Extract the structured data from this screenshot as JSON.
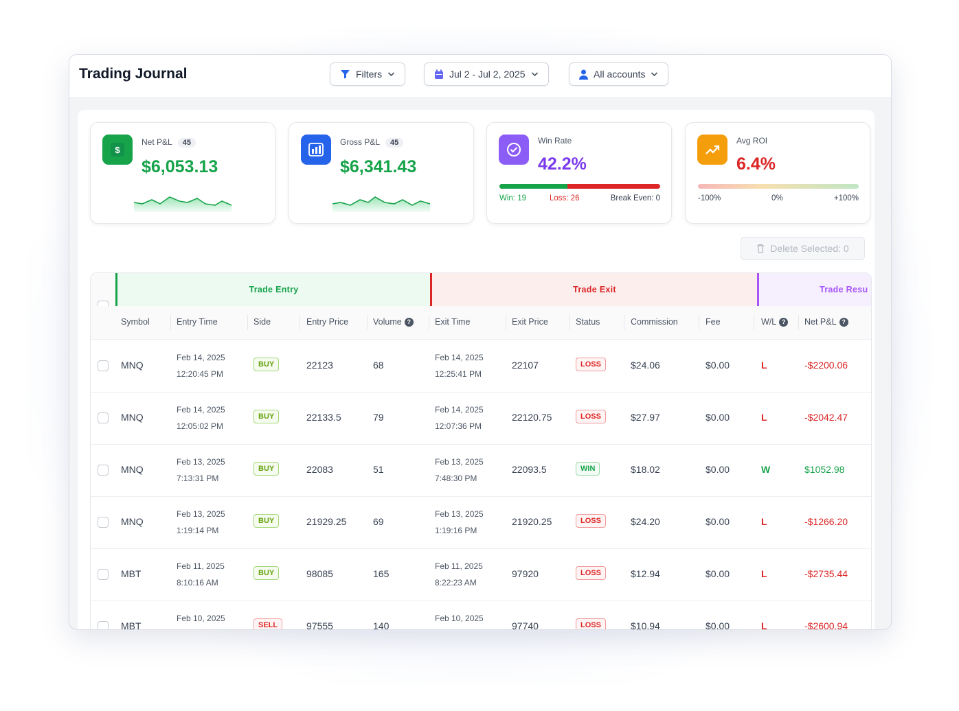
{
  "app": {
    "title": "Trading Journal"
  },
  "toolbar": {
    "filters_label": "Filters",
    "date_range": "Jul 2 - Jul 2, 2025",
    "accounts_label": "All accounts"
  },
  "cards": {
    "net_pnl": {
      "label": "Net P&L",
      "count": "45",
      "value": "$6,053.13",
      "icon": "dollar-icon",
      "color": "#16a34a"
    },
    "gross_pnl": {
      "label": "Gross P&L",
      "count": "45",
      "value": "$6,341.43",
      "icon": "bar-chart-icon",
      "color": "#16a34a"
    },
    "win_rate": {
      "label": "Win Rate",
      "value": "42.2%",
      "icon": "check-circle-icon",
      "color": "#7c3aed",
      "win_label": "Win: 19",
      "loss_label": "Loss: 26",
      "break_even_label": "Break Even: 0",
      "win_fraction": 0.422
    },
    "avg_roi": {
      "label": "Avg ROI",
      "value": "6.4%",
      "icon": "trend-up-icon",
      "color": "#dc2626",
      "scale_min": "-100%",
      "scale_mid": "0%",
      "scale_max": "+100%"
    }
  },
  "actions": {
    "delete_selected": "Delete Selected: 0"
  },
  "table": {
    "groups": {
      "entry": "Trade Entry",
      "exit": "Trade Exit",
      "result": "Trade Resu"
    },
    "columns": {
      "symbol": "Symbol",
      "entry_time": "Entry Time",
      "side": "Side",
      "entry_price": "Entry Price",
      "volume": "Volume",
      "exit_time": "Exit Time",
      "exit_price": "Exit Price",
      "status": "Status",
      "commission": "Commission",
      "fee": "Fee",
      "wl": "W/L",
      "net_pnl": "Net P&L"
    },
    "rows": [
      {
        "symbol": "MNQ",
        "entry_date": "Feb 14, 2025",
        "entry_clock": "12:20:45 PM",
        "side": "BUY",
        "entry_price": "22123",
        "volume": "68",
        "exit_date": "Feb 14, 2025",
        "exit_clock": "12:25:41 PM",
        "exit_price": "22107",
        "status": "LOSS",
        "commission": "$24.06",
        "fee": "$0.00",
        "wl": "L",
        "net_pnl": "-$2200.06"
      },
      {
        "symbol": "MNQ",
        "entry_date": "Feb 14, 2025",
        "entry_clock": "12:05:02 PM",
        "side": "BUY",
        "entry_price": "22133.5",
        "volume": "79",
        "exit_date": "Feb 14, 2025",
        "exit_clock": "12:07:36 PM",
        "exit_price": "22120.75",
        "status": "LOSS",
        "commission": "$27.97",
        "fee": "$0.00",
        "wl": "L",
        "net_pnl": "-$2042.47"
      },
      {
        "symbol": "MNQ",
        "entry_date": "Feb 13, 2025",
        "entry_clock": "7:13:31 PM",
        "side": "BUY",
        "entry_price": "22083",
        "volume": "51",
        "exit_date": "Feb 13, 2025",
        "exit_clock": "7:48:30 PM",
        "exit_price": "22093.5",
        "status": "WIN",
        "commission": "$18.02",
        "fee": "$0.00",
        "wl": "W",
        "net_pnl": "$1052.98"
      },
      {
        "symbol": "MNQ",
        "entry_date": "Feb 13, 2025",
        "entry_clock": "1:19:14 PM",
        "side": "BUY",
        "entry_price": "21929.25",
        "volume": "69",
        "exit_date": "Feb 13, 2025",
        "exit_clock": "1:19:16 PM",
        "exit_price": "21920.25",
        "status": "LOSS",
        "commission": "$24.20",
        "fee": "$0.00",
        "wl": "L",
        "net_pnl": "-$1266.20"
      },
      {
        "symbol": "MBT",
        "entry_date": "Feb 11, 2025",
        "entry_clock": "8:10:16 AM",
        "side": "BUY",
        "entry_price": "98085",
        "volume": "165",
        "exit_date": "Feb 11, 2025",
        "exit_clock": "8:22:23 AM",
        "exit_price": "97920",
        "status": "LOSS",
        "commission": "$12.94",
        "fee": "$0.00",
        "wl": "L",
        "net_pnl": "-$2735.44"
      },
      {
        "symbol": "MBT",
        "entry_date": "Feb 10, 2025",
        "entry_clock": "",
        "side": "SELL",
        "entry_price": "97555",
        "volume": "140",
        "exit_date": "Feb 10, 2025",
        "exit_clock": "",
        "exit_price": "97740",
        "status": "LOSS",
        "commission": "$10.94",
        "fee": "$0.00",
        "wl": "L",
        "net_pnl": "-$2600.94"
      }
    ]
  },
  "colors": {
    "green": "#16a34a",
    "red": "#dc2626",
    "purple": "#a855f7"
  }
}
